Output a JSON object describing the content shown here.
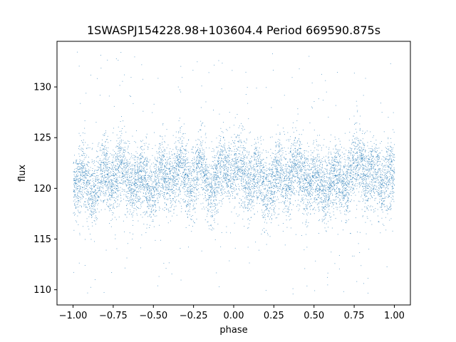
{
  "chart_data": {
    "type": "scatter",
    "title": "1SWASPJ154228.98+103604.4 Period 669590.875s",
    "xlabel": "phase",
    "ylabel": "flux",
    "xlim": [
      -1.1,
      1.1
    ],
    "ylim": [
      108.5,
      134.5
    ],
    "x_ticks": [
      -1.0,
      -0.75,
      -0.5,
      -0.25,
      0.0,
      0.25,
      0.5,
      0.75,
      1.0
    ],
    "x_tick_labels": [
      "−1.00",
      "−0.75",
      "−0.50",
      "−0.25",
      "0.00",
      "0.25",
      "0.50",
      "0.75",
      "1.00"
    ],
    "y_ticks": [
      110,
      115,
      120,
      125,
      130
    ],
    "y_tick_labels": [
      "110",
      "115",
      "120",
      "125",
      "130"
    ],
    "grid": false,
    "point_color": "#1f77b4",
    "series": [
      {
        "x_range": [
          -1.0,
          1.0
        ],
        "baseline_flux": 121.0,
        "typical_flux_range": [
          117,
          125
        ],
        "extreme_flux_range": [
          109.5,
          133.5
        ],
        "note_peaks_phase": [
          -0.2,
          -0.05,
          0.8,
          0.95
        ]
      }
    ]
  }
}
